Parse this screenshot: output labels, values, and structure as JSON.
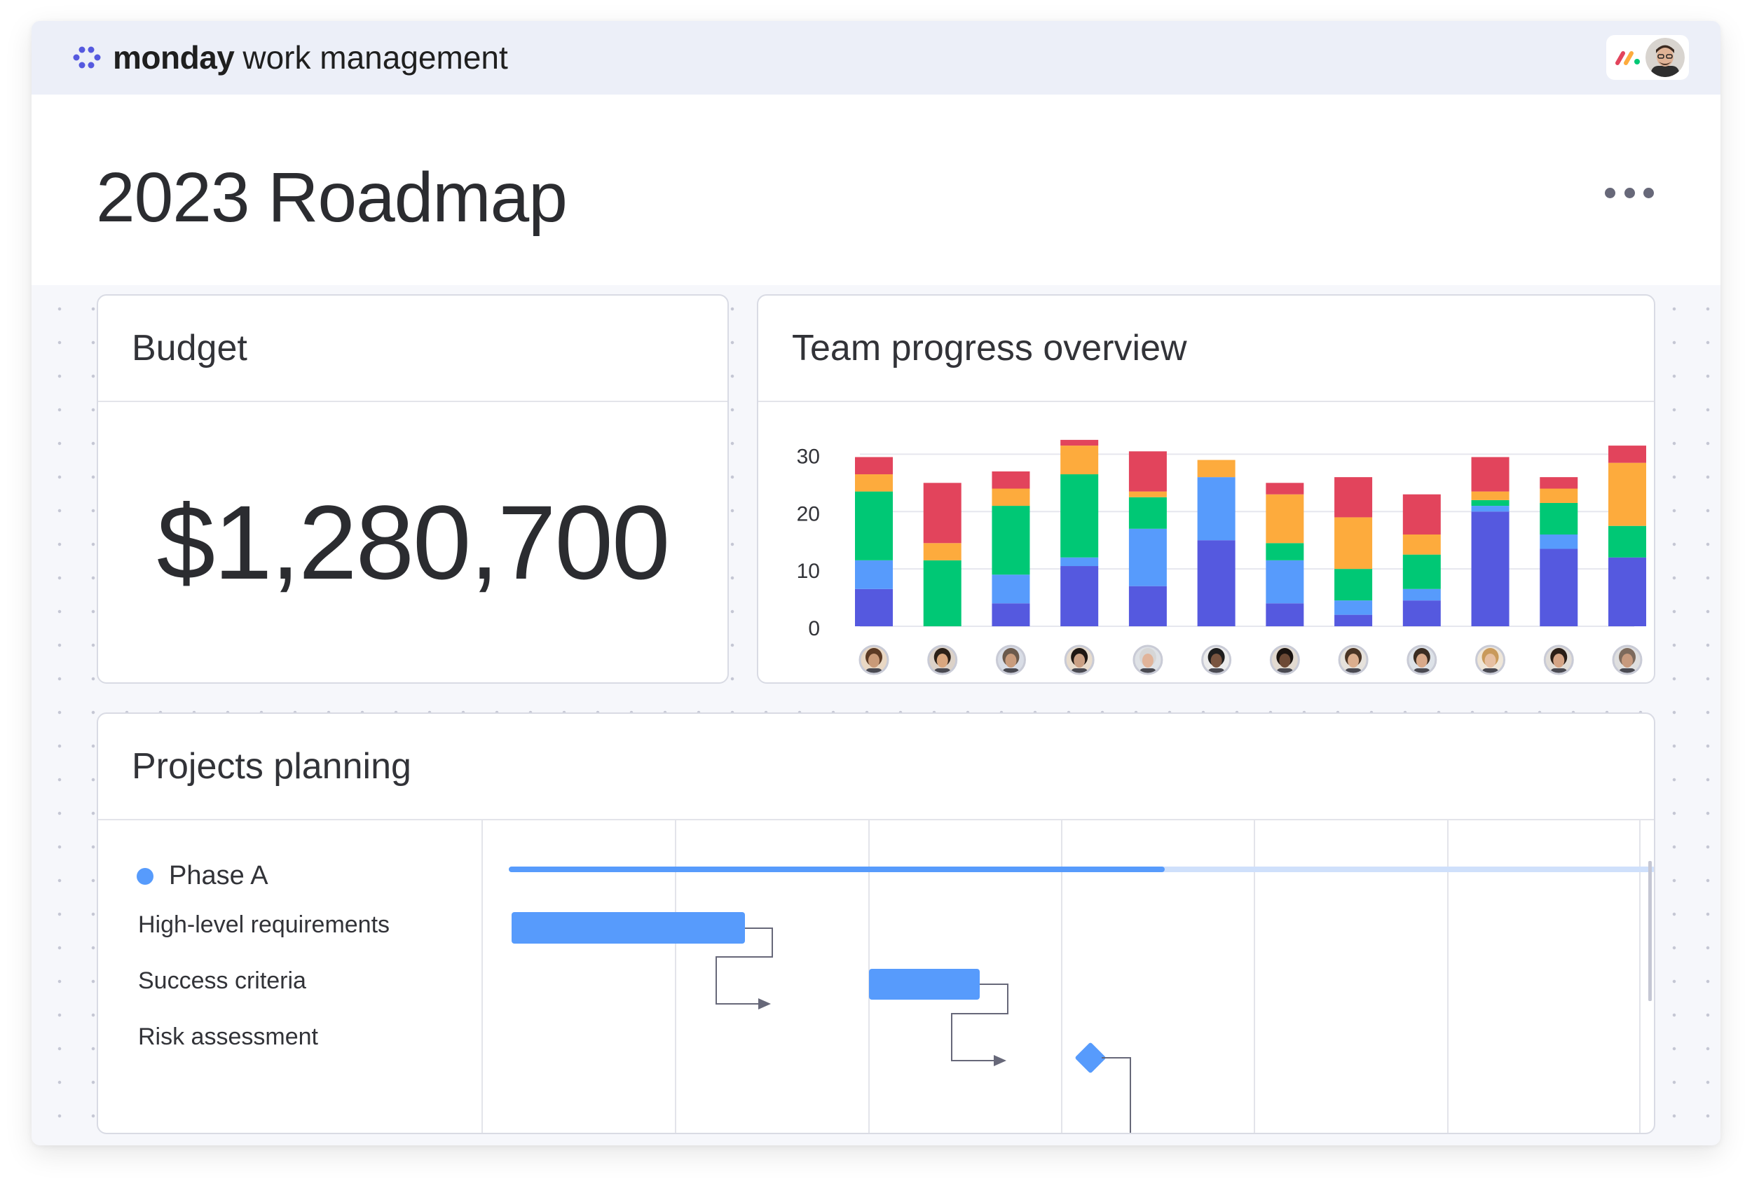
{
  "app": {
    "brand": "monday",
    "product": "work management"
  },
  "page": {
    "title": "2023 Roadmap"
  },
  "widgets": {
    "budget": {
      "title": "Budget",
      "value": "$1,280,700"
    },
    "team_progress": {
      "title": "Team progress overview"
    },
    "planning": {
      "title": "Projects planning",
      "phase": "Phase A",
      "tasks": [
        "High-level requirements",
        "Success criteria",
        "Risk assessment"
      ],
      "phase_progress": 0.57
    }
  },
  "colors": {
    "purple": "#5559df",
    "blue": "#579bfc",
    "green": "#00c875",
    "orange": "#fdab3d",
    "red": "#e2445c"
  },
  "chart_data": {
    "type": "bar",
    "stacked": true,
    "ylim": [
      0,
      32
    ],
    "yticks": [
      "0",
      "10",
      "20",
      "30"
    ],
    "grid": true,
    "categories": [
      "",
      "",
      "",
      "",
      "",
      "",
      "",
      "",
      "",
      "",
      "",
      ""
    ],
    "series": [
      {
        "color": "#5559df",
        "values": [
          6.5,
          0,
          4,
          10.5,
          7,
          15,
          4,
          2,
          4.5,
          20,
          13.5,
          12
        ]
      },
      {
        "color": "#579bfc",
        "values": [
          5,
          0,
          5,
          1.5,
          10,
          11,
          7.5,
          2.5,
          2,
          1,
          2.5,
          0
        ]
      },
      {
        "color": "#00c875",
        "values": [
          12,
          11.5,
          12,
          14.5,
          5.5,
          0,
          3,
          5.5,
          6,
          1,
          5.5,
          5.5
        ]
      },
      {
        "color": "#fdab3d",
        "values": [
          3,
          3,
          3,
          5,
          1,
          3,
          8.5,
          9,
          3.5,
          1.5,
          2.5,
          11
        ]
      },
      {
        "color": "#e2445c",
        "values": [
          3,
          10.5,
          3,
          1,
          7,
          0,
          2,
          7,
          7,
          6,
          2,
          3
        ]
      }
    ]
  }
}
